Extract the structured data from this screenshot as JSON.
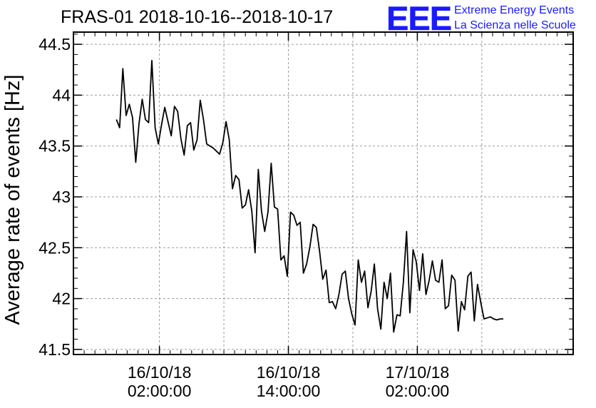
{
  "header": {
    "title": "FRAS-01 2018-10-16--2018-10-17"
  },
  "logo": {
    "mark": "EEE",
    "line1": "Extreme Energy Events",
    "line2": "La Scienza nelle Scuole",
    "color": "#1a1aff"
  },
  "chart_data": {
    "type": "line",
    "title": "FRAS-01 2018-10-16--2018-10-17",
    "ylabel": "Average rate of events [Hz]",
    "xlabel": "",
    "x_unit": "hours since 2018-10-16 00:00:00",
    "xlim": [
      -6,
      40.5
    ],
    "ylim": [
      41.45,
      44.62
    ],
    "grid": true,
    "line_color": "#000000",
    "x_ticks": [
      {
        "value": 2,
        "line1": "16/10/18",
        "line2": "02:00:00"
      },
      {
        "value": 14,
        "line1": "16/10/18",
        "line2": "14:00:00"
      },
      {
        "value": 26,
        "line1": "17/10/18",
        "line2": "02:00:00"
      }
    ],
    "x_minor_step": 1,
    "x_grid": [
      2,
      8,
      14,
      20,
      26,
      32
    ],
    "y_ticks": [
      {
        "value": 41.5,
        "label": "41.5"
      },
      {
        "value": 42,
        "label": "42"
      },
      {
        "value": 42.5,
        "label": "42.5"
      },
      {
        "value": 43,
        "label": "43"
      },
      {
        "value": 43.5,
        "label": "43.5"
      },
      {
        "value": 44,
        "label": "44"
      },
      {
        "value": 44.5,
        "label": "44.5"
      }
    ],
    "y_minor_step": 0.1,
    "series": [
      {
        "x": [
          -2.0,
          -1.7,
          -1.4,
          -1.1,
          -0.8,
          -0.5,
          -0.2,
          0.1,
          0.4,
          0.7,
          1.0,
          1.3,
          1.6,
          1.9,
          2.2,
          2.5,
          3.1,
          3.4,
          3.7,
          4.0,
          4.3,
          4.6,
          4.9,
          5.2,
          5.5,
          5.8,
          6.1,
          6.4,
          6.7,
          7.0,
          7.3,
          7.6,
          7.9,
          8.2,
          8.5,
          8.8,
          9.1,
          9.4,
          9.7,
          10.0,
          10.3,
          10.6,
          10.9,
          11.2,
          11.5,
          11.8,
          12.1,
          12.4,
          12.7,
          13.0,
          13.3,
          13.6,
          13.9,
          14.2,
          14.5,
          14.8,
          15.1,
          15.4,
          15.7,
          16.0,
          16.3,
          16.6,
          16.9,
          17.2,
          17.5,
          17.8,
          18.1,
          18.4,
          18.7,
          19.0,
          19.3,
          19.6,
          19.9,
          20.2,
          20.5,
          20.8,
          21.1,
          21.4,
          21.7,
          22.0,
          22.3,
          22.6,
          22.9,
          23.2,
          23.5,
          23.8,
          24.1,
          24.4,
          24.7,
          25.0,
          25.3,
          25.6,
          25.9,
          26.2,
          26.5,
          26.8,
          27.1,
          27.4,
          27.7,
          28.0,
          28.3,
          28.6,
          28.9,
          29.2,
          29.5,
          29.8,
          30.1,
          30.4,
          30.7,
          31.0,
          31.3,
          31.6,
          31.9,
          32.2,
          32.5,
          32.8,
          33.1,
          33.4,
          33.7,
          34.0
        ],
        "values": [
          43.76,
          43.68,
          44.26,
          43.8,
          43.91,
          43.78,
          43.34,
          43.72,
          43.96,
          43.76,
          43.73,
          44.34,
          43.68,
          43.52,
          43.71,
          43.88,
          43.6,
          43.89,
          43.84,
          43.57,
          43.41,
          43.7,
          43.73,
          43.46,
          43.56,
          43.95,
          43.76,
          43.52,
          43.5,
          43.48,
          43.45,
          43.42,
          43.53,
          43.74,
          43.56,
          43.08,
          43.21,
          43.17,
          42.89,
          42.92,
          43.07,
          42.86,
          42.45,
          43.27,
          42.86,
          42.66,
          42.85,
          43.33,
          42.9,
          42.88,
          42.38,
          42.42,
          42.22,
          42.85,
          42.82,
          42.72,
          42.75,
          42.25,
          42.34,
          42.51,
          42.73,
          42.7,
          42.47,
          42.19,
          42.28,
          41.96,
          41.97,
          41.9,
          42.04,
          42.24,
          42.27,
          42.0,
          41.85,
          41.74,
          42.38,
          42.16,
          42.27,
          41.91,
          42.07,
          42.34,
          41.9,
          41.7,
          42.16,
          42.0,
          42.25,
          41.67,
          41.84,
          41.83,
          42.16,
          42.66,
          41.86,
          42.48,
          42.36,
          42.08,
          42.44,
          42.04,
          42.18,
          42.37,
          42.18,
          42.16,
          42.38,
          41.9,
          41.93,
          42.23,
          42.18,
          41.68,
          41.97,
          41.89,
          42.22,
          42.26,
          41.78,
          42.14,
          41.96,
          41.8,
          41.81,
          41.82,
          41.8,
          41.79,
          41.8,
          41.8
        ]
      }
    ]
  }
}
